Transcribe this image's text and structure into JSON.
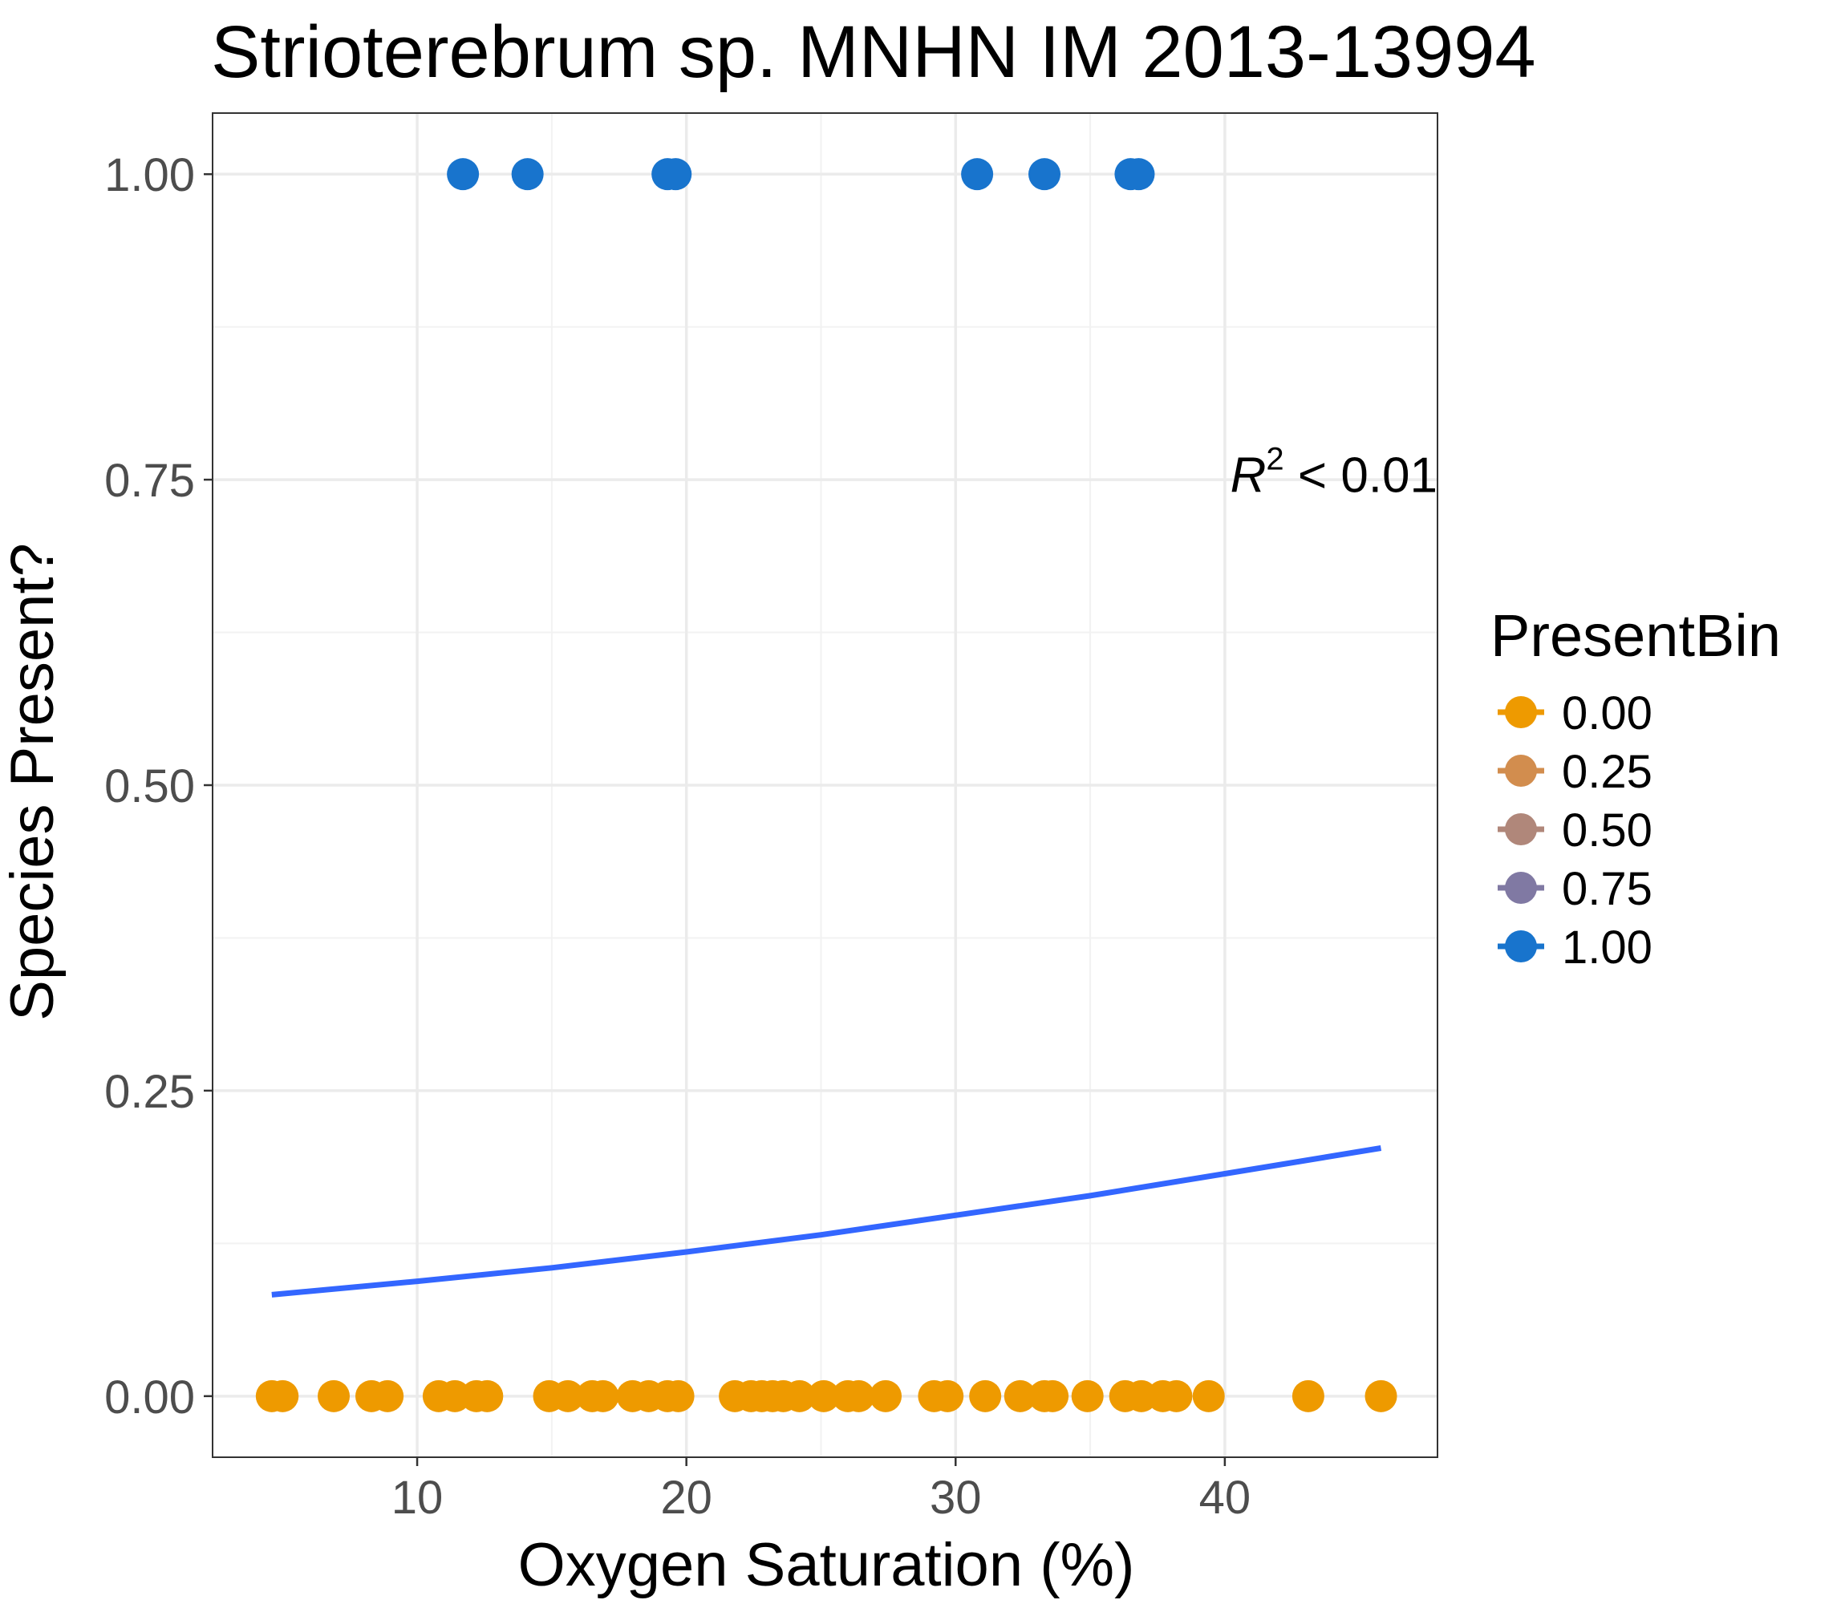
{
  "chart_data": {
    "type": "scatter",
    "title": "Strioterebrum sp. MNHN IM 2013-13994",
    "xlabel": "Oxygen Saturation (%)",
    "ylabel": "Species Present?",
    "xlim": [
      2.4,
      47.9
    ],
    "ylim": [
      -0.05,
      1.05
    ],
    "x_ticks": [
      10,
      20,
      30,
      40
    ],
    "x_tick_labels": [
      "10",
      "20",
      "30",
      "40"
    ],
    "y_ticks": [
      0,
      0.25,
      0.5,
      0.75,
      1
    ],
    "y_tick_labels": [
      "0.00",
      "0.25",
      "0.50",
      "0.75",
      "1.00"
    ],
    "grid": true,
    "legend": {
      "title": "PresentBin",
      "position": "right",
      "entries": [
        {
          "label": "0.00",
          "color": "#EE9A00"
        },
        {
          "label": "0.25",
          "color": "#D28D4E"
        },
        {
          "label": "0.50",
          "color": "#B0877A"
        },
        {
          "label": "0.75",
          "color": "#8079A3"
        },
        {
          "label": "1.00",
          "color": "#1874CD"
        }
      ]
    },
    "annotation": {
      "symbol": "R",
      "superscript": "2",
      "text": " < 0.01",
      "x": 47.9,
      "y": 0.74
    },
    "series": [
      {
        "present": 1,
        "color": "#1874CD",
        "points": [
          [
            11.7,
            1
          ],
          [
            14.1,
            1
          ],
          [
            19.3,
            1
          ],
          [
            19.6,
            1
          ],
          [
            30.8,
            1
          ],
          [
            33.3,
            1
          ],
          [
            36.5,
            1
          ],
          [
            36.8,
            1
          ]
        ]
      },
      {
        "present": 0,
        "color": "#EE9A00",
        "points": [
          [
            4.6,
            0
          ],
          [
            5.0,
            0
          ],
          [
            6.9,
            0
          ],
          [
            8.3,
            0
          ],
          [
            8.9,
            0
          ],
          [
            10.8,
            0
          ],
          [
            11.4,
            0
          ],
          [
            12.2,
            0
          ],
          [
            12.6,
            0
          ],
          [
            14.9,
            0
          ],
          [
            15.6,
            0
          ],
          [
            16.5,
            0
          ],
          [
            16.9,
            0
          ],
          [
            18.0,
            0
          ],
          [
            18.6,
            0
          ],
          [
            19.3,
            0
          ],
          [
            19.7,
            0
          ],
          [
            21.8,
            0
          ],
          [
            22.4,
            0
          ],
          [
            22.8,
            0
          ],
          [
            23.2,
            0
          ],
          [
            23.6,
            0
          ],
          [
            24.2,
            0
          ],
          [
            25.1,
            0
          ],
          [
            26.0,
            0
          ],
          [
            26.4,
            0
          ],
          [
            27.4,
            0
          ],
          [
            29.2,
            0
          ],
          [
            29.7,
            0
          ],
          [
            31.1,
            0
          ],
          [
            32.4,
            0
          ],
          [
            33.3,
            0
          ],
          [
            33.6,
            0
          ],
          [
            34.9,
            0
          ],
          [
            36.3,
            0
          ],
          [
            36.9,
            0
          ],
          [
            37.7,
            0
          ],
          [
            38.2,
            0
          ],
          [
            39.4,
            0
          ],
          [
            43.1,
            0
          ],
          [
            45.8,
            0
          ]
        ]
      }
    ],
    "fit_line": {
      "color": "#3366FF",
      "points": [
        [
          4.6,
          0.083
        ],
        [
          10.0,
          0.094
        ],
        [
          15.0,
          0.105
        ],
        [
          20.0,
          0.118
        ],
        [
          25.0,
          0.132
        ],
        [
          30.0,
          0.148
        ],
        [
          35.0,
          0.164
        ],
        [
          40.0,
          0.182
        ],
        [
          45.8,
          0.203
        ]
      ]
    }
  }
}
